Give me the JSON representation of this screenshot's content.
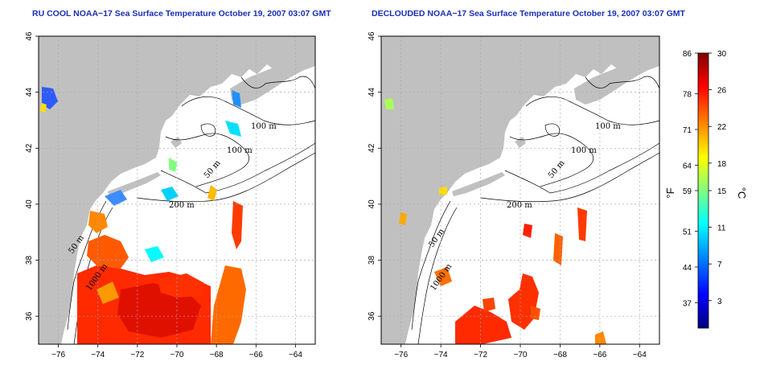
{
  "colors": {
    "title": "#1a2fb4",
    "land": "#c0c0c0",
    "ocean": "#ffffff",
    "grid": "#aaaaaa",
    "contour": "#000000"
  },
  "panels": [
    {
      "title": "RU COOL NOAA−17 Sea Surface Temperature October 19, 2007 03:07 GMT",
      "contour_labels": [
        "100 m",
        "100 m",
        "50 m",
        "200 m",
        "50 m",
        "1000 m"
      ]
    },
    {
      "title": "DECLOUDED NOAA−17 Sea Surface Temperature October 19, 2007 03:07 GMT",
      "contour_labels": [
        "100 m",
        "100 m",
        "50 m",
        "200 m",
        "50 m",
        "1000 m"
      ]
    }
  ],
  "map_axes": {
    "x_ticks": [
      "−76",
      "−74",
      "−72",
      "−70",
      "−68",
      "−66",
      "−64"
    ],
    "y_ticks": [
      "36",
      "38",
      "40",
      "42",
      "44",
      "46"
    ],
    "lon_range": [
      -77,
      -63
    ],
    "lat_range": [
      35,
      46
    ]
  },
  "colorbar": {
    "unit_left": "°F",
    "unit_right": "°C",
    "fahrenheit_ticks": [
      "86",
      "78",
      "71",
      "64",
      "59",
      "51",
      "44",
      "37"
    ],
    "celsius_ticks": [
      "30",
      "26",
      "22",
      "18",
      "15",
      "11",
      "7",
      "3"
    ],
    "celsius_range": [
      0,
      30
    ],
    "colormap": [
      "#00007f",
      "#0000ff",
      "#007fff",
      "#00ffff",
      "#7fff7f",
      "#ffff00",
      "#ff7f00",
      "#ff0000",
      "#7f0000"
    ]
  }
}
